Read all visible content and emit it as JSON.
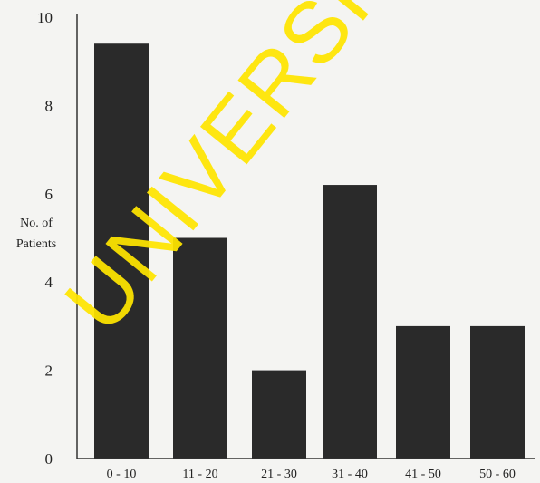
{
  "chart_data": {
    "type": "bar",
    "categories": [
      "0 - 10",
      "11 - 20",
      "21 - 30",
      "31 - 40",
      "41 - 50",
      "50 - 60"
    ],
    "values": [
      9.4,
      5.0,
      2.0,
      6.2,
      3.0,
      3.0
    ],
    "title": "",
    "xlabel": "",
    "ylabel": "No. of Patients",
    "ylabel_lines": [
      "No. of",
      "Patients"
    ],
    "ylim": [
      0,
      10
    ],
    "yticks": [
      0,
      2,
      4,
      6,
      8,
      10
    ],
    "grid": false,
    "bar_color": "#2a2a2a"
  },
  "watermark": {
    "text": "UNIVERSITY",
    "color": "#ffe600"
  }
}
